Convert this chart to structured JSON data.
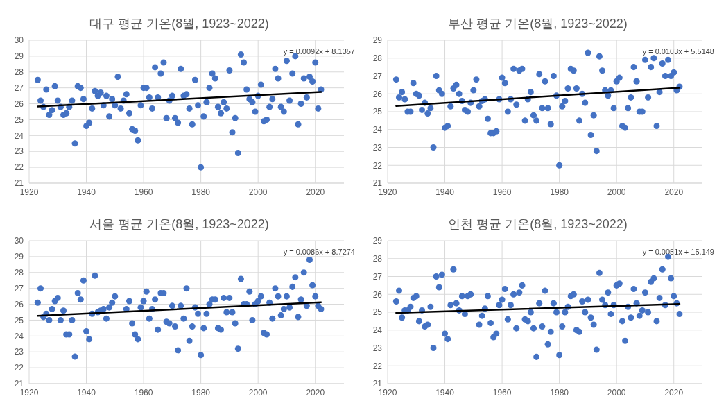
{
  "chart_data": [
    {
      "type": "scatter",
      "title": "대구 평균 기온(8월, 1923~2022)",
      "annotations": [
        "y = 0.0092x + 8.1357"
      ],
      "xlim": [
        1920,
        2030
      ],
      "xticks": [
        1920,
        1940,
        1960,
        1980,
        2000,
        2020
      ],
      "ylim": [
        21,
        30
      ],
      "yticks": [
        21,
        22,
        23,
        24,
        25,
        26,
        27,
        28,
        29,
        30
      ],
      "grid": true,
      "x": [
        1923,
        1924,
        1925,
        1926,
        1927,
        1928,
        1929,
        1930,
        1931,
        1932,
        1933,
        1934,
        1935,
        1936,
        1937,
        1938,
        1939,
        1940,
        1941,
        1942,
        1943,
        1944,
        1945,
        1946,
        1947,
        1948,
        1949,
        1950,
        1951,
        1952,
        1953,
        1954,
        1955,
        1956,
        1957,
        1958,
        1959,
        1960,
        1961,
        1962,
        1963,
        1964,
        1965,
        1966,
        1967,
        1968,
        1969,
        1970,
        1971,
        1972,
        1973,
        1974,
        1975,
        1976,
        1977,
        1978,
        1979,
        1980,
        1981,
        1982,
        1983,
        1984,
        1985,
        1986,
        1987,
        1988,
        1989,
        1990,
        1991,
        1992,
        1993,
        1994,
        1995,
        1996,
        1997,
        1998,
        1999,
        2000,
        2001,
        2002,
        2003,
        2004,
        2005,
        2006,
        2007,
        2008,
        2009,
        2010,
        2011,
        2012,
        2013,
        2014,
        2015,
        2016,
        2017,
        2018,
        2019,
        2020,
        2021,
        2022
      ],
      "series": [
        {
          "type": "scatter",
          "color": "#4472c4",
          "marker": "circle",
          "values": [
            27.5,
            26.2,
            25.8,
            26.9,
            25.3,
            25.6,
            27.1,
            26.2,
            25.8,
            25.3,
            25.4,
            25.8,
            26.2,
            23.5,
            27.1,
            27.0,
            26.3,
            24.6,
            24.8,
            25.7,
            26.8,
            26.5,
            26.7,
            25.9,
            26.5,
            25.2,
            26.3,
            25.9,
            27.7,
            25.7,
            26.2,
            26.6,
            25.4,
            24.4,
            24.3,
            23.7,
            25.9,
            27.0,
            27.0,
            26.4,
            25.7,
            28.3,
            26.4,
            27.9,
            28.6,
            25.1,
            26.2,
            26.5,
            25.1,
            24.8,
            28.2,
            26.5,
            26.6,
            25.7,
            24.7,
            27.5,
            25.9,
            22.0,
            25.2,
            26.1,
            27.0,
            27.9,
            27.6,
            25.8,
            25.4,
            26.1,
            25.7,
            28.1,
            24.2,
            25.1,
            22.9,
            29.1,
            28.6,
            26.9,
            26.3,
            26.1,
            25.5,
            26.5,
            27.2,
            24.9,
            25.0,
            25.8,
            26.3,
            28.2,
            27.6,
            25.8,
            25.5,
            28.7,
            26.2,
            27.9,
            29.0,
            24.7,
            26.0,
            27.6,
            26.4,
            27.7,
            27.4,
            28.6,
            25.7,
            26.9
          ]
        },
        {
          "type": "line",
          "color": "#000000",
          "marker": "none",
          "values": [
            25.83,
            null,
            null,
            null,
            null,
            null,
            null,
            null,
            null,
            null,
            null,
            null,
            null,
            null,
            null,
            null,
            null,
            null,
            null,
            null,
            null,
            null,
            null,
            null,
            null,
            null,
            null,
            null,
            null,
            null,
            null,
            null,
            null,
            null,
            null,
            null,
            null,
            null,
            null,
            null,
            null,
            null,
            null,
            null,
            null,
            null,
            null,
            null,
            null,
            null,
            null,
            null,
            null,
            null,
            null,
            null,
            null,
            null,
            null,
            null,
            null,
            null,
            null,
            null,
            null,
            null,
            null,
            null,
            null,
            null,
            null,
            null,
            null,
            null,
            null,
            null,
            null,
            null,
            null,
            null,
            null,
            null,
            null,
            null,
            null,
            null,
            null,
            null,
            null,
            null,
            null,
            null,
            null,
            null,
            null,
            null,
            null,
            null,
            null,
            26.74
          ]
        }
      ]
    },
    {
      "type": "scatter",
      "title": "부산 평균 기온(8월, 1923~2022)",
      "annotations": [
        "y = 0.0103x + 5.5148"
      ],
      "xlim": [
        1920,
        2030
      ],
      "xticks": [
        1920,
        1940,
        1960,
        1980,
        2000,
        2020
      ],
      "ylim": [
        21,
        29
      ],
      "yticks": [
        21,
        22,
        23,
        24,
        25,
        26,
        27,
        28,
        29
      ],
      "grid": true,
      "x": [
        1923,
        1924,
        1925,
        1926,
        1927,
        1928,
        1929,
        1930,
        1931,
        1932,
        1933,
        1934,
        1935,
        1936,
        1937,
        1938,
        1939,
        1940,
        1941,
        1942,
        1943,
        1944,
        1945,
        1946,
        1947,
        1948,
        1949,
        1950,
        1951,
        1952,
        1953,
        1954,
        1955,
        1956,
        1957,
        1958,
        1959,
        1960,
        1961,
        1962,
        1963,
        1964,
        1965,
        1966,
        1967,
        1968,
        1969,
        1970,
        1971,
        1972,
        1973,
        1974,
        1975,
        1976,
        1977,
        1978,
        1979,
        1980,
        1981,
        1982,
        1983,
        1984,
        1985,
        1986,
        1987,
        1988,
        1989,
        1990,
        1991,
        1992,
        1993,
        1994,
        1995,
        1996,
        1997,
        1998,
        1999,
        2000,
        2001,
        2002,
        2003,
        2004,
        2005,
        2006,
        2007,
        2008,
        2009,
        2010,
        2011,
        2012,
        2013,
        2014,
        2015,
        2016,
        2017,
        2018,
        2019,
        2020,
        2021,
        2022
      ],
      "series": [
        {
          "type": "scatter",
          "color": "#4472c4",
          "marker": "circle",
          "values": [
            26.8,
            25.8,
            26.1,
            25.7,
            25.0,
            25.0,
            26.6,
            26.0,
            25.9,
            25.1,
            25.5,
            24.9,
            25.2,
            23.0,
            27.0,
            26.2,
            26.0,
            24.1,
            24.2,
            25.3,
            26.3,
            26.5,
            26.0,
            25.6,
            25.1,
            25.0,
            25.5,
            26.2,
            26.8,
            25.3,
            25.6,
            25.7,
            24.6,
            23.8,
            23.8,
            23.9,
            25.7,
            26.9,
            26.6,
            25.0,
            25.7,
            27.4,
            25.4,
            27.3,
            27.4,
            24.5,
            25.7,
            26.1,
            24.8,
            24.5,
            27.1,
            25.2,
            26.7,
            25.2,
            24.3,
            27.0,
            25.9,
            22.0,
            25.3,
            25.6,
            26.3,
            27.4,
            27.3,
            26.3,
            24.5,
            26.0,
            25.5,
            28.3,
            23.7,
            24.8,
            22.8,
            28.1,
            27.3,
            26.2,
            25.9,
            26.2,
            25.2,
            26.7,
            26.9,
            24.2,
            24.1,
            25.2,
            25.8,
            27.5,
            26.7,
            25.0,
            25.0,
            27.9,
            25.8,
            27.5,
            28.0,
            24.2,
            26.1,
            27.7,
            27.0,
            27.9,
            27.0,
            27.2,
            26.2,
            26.4
          ]
        },
        {
          "type": "line",
          "color": "#000000",
          "marker": "none",
          "values": [
            25.32,
            null,
            null,
            null,
            null,
            null,
            null,
            null,
            null,
            null,
            null,
            null,
            null,
            null,
            null,
            null,
            null,
            null,
            null,
            null,
            null,
            null,
            null,
            null,
            null,
            null,
            null,
            null,
            null,
            null,
            null,
            null,
            null,
            null,
            null,
            null,
            null,
            null,
            null,
            null,
            null,
            null,
            null,
            null,
            null,
            null,
            null,
            null,
            null,
            null,
            null,
            null,
            null,
            null,
            null,
            null,
            null,
            null,
            null,
            null,
            null,
            null,
            null,
            null,
            null,
            null,
            null,
            null,
            null,
            null,
            null,
            null,
            null,
            null,
            null,
            null,
            null,
            null,
            null,
            null,
            null,
            null,
            null,
            null,
            null,
            null,
            null,
            null,
            null,
            null,
            null,
            null,
            null,
            null,
            null,
            null,
            null,
            null,
            null,
            26.34
          ]
        }
      ]
    },
    {
      "type": "scatter",
      "title": "서울 평균 기온(8월, 1923~2022)",
      "annotations": [
        "y = 0.0086x + 8.7274"
      ],
      "xlim": [
        1920,
        2030
      ],
      "xticks": [
        1920,
        1940,
        1960,
        1980,
        2000,
        2020
      ],
      "ylim": [
        21,
        30
      ],
      "yticks": [
        21,
        22,
        23,
        24,
        25,
        26,
        27,
        28,
        29,
        30
      ],
      "grid": true,
      "x": [
        1923,
        1924,
        1925,
        1926,
        1927,
        1928,
        1929,
        1930,
        1931,
        1932,
        1933,
        1934,
        1935,
        1936,
        1937,
        1938,
        1939,
        1940,
        1941,
        1942,
        1943,
        1944,
        1945,
        1946,
        1947,
        1948,
        1949,
        1950,
        1951,
        1952,
        1953,
        1954,
        1955,
        1956,
        1957,
        1958,
        1959,
        1960,
        1961,
        1962,
        1963,
        1964,
        1965,
        1966,
        1967,
        1968,
        1969,
        1970,
        1971,
        1972,
        1973,
        1974,
        1975,
        1976,
        1977,
        1978,
        1979,
        1980,
        1981,
        1982,
        1983,
        1984,
        1985,
        1986,
        1987,
        1988,
        1989,
        1990,
        1991,
        1992,
        1993,
        1994,
        1995,
        1996,
        1997,
        1998,
        1999,
        2000,
        2001,
        2002,
        2003,
        2004,
        2005,
        2006,
        2007,
        2008,
        2009,
        2010,
        2011,
        2012,
        2013,
        2014,
        2015,
        2016,
        2017,
        2018,
        2019,
        2020,
        2021,
        2022
      ],
      "series": [
        {
          "type": "scatter",
          "color": "#4472c4",
          "marker": "circle",
          "values": [
            26.1,
            27.0,
            25.2,
            25.4,
            25.0,
            25.7,
            26.2,
            26.4,
            25.0,
            25.6,
            24.1,
            24.1,
            25.0,
            22.7,
            26.7,
            26.3,
            27.5,
            24.3,
            23.8,
            25.4,
            27.8,
            25.5,
            25.6,
            25.7,
            25.1,
            25.8,
            26.1,
            26.5,
            null,
            null,
            null,
            25.7,
            26.2,
            24.8,
            24.1,
            23.8,
            25.8,
            26.2,
            26.8,
            25.1,
            25.7,
            26.3,
            24.4,
            26.7,
            26.7,
            24.9,
            24.8,
            25.9,
            24.6,
            23.1,
            25.9,
            25.1,
            27.0,
            23.7,
            24.6,
            25.8,
            25.4,
            22.8,
            24.5,
            25.4,
            26.0,
            26.3,
            26.3,
            24.5,
            24.4,
            26.4,
            25.5,
            26.4,
            25.5,
            24.8,
            23.2,
            27.6,
            26.0,
            26.0,
            26.8,
            25.0,
            26.0,
            26.2,
            26.5,
            24.2,
            24.1,
            26.1,
            25.1,
            27.0,
            26.5,
            25.3,
            25.7,
            26.5,
            25.8,
            27.1,
            27.7,
            25.2,
            26.3,
            28.0,
            25.9,
            28.8,
            27.2,
            26.5,
            25.9,
            25.7
          ]
        },
        {
          "type": "line",
          "color": "#000000",
          "marker": "none",
          "values": [
            25.27,
            null,
            null,
            null,
            null,
            null,
            null,
            null,
            null,
            null,
            null,
            null,
            null,
            null,
            null,
            null,
            null,
            null,
            null,
            null,
            null,
            null,
            null,
            null,
            null,
            null,
            null,
            null,
            null,
            null,
            null,
            null,
            null,
            null,
            null,
            null,
            null,
            null,
            null,
            null,
            null,
            null,
            null,
            null,
            null,
            null,
            null,
            null,
            null,
            null,
            null,
            null,
            null,
            null,
            null,
            null,
            null,
            null,
            null,
            null,
            null,
            null,
            null,
            null,
            null,
            null,
            null,
            null,
            null,
            null,
            null,
            null,
            null,
            null,
            null,
            null,
            null,
            null,
            null,
            null,
            null,
            null,
            null,
            null,
            null,
            null,
            null,
            null,
            null,
            null,
            null,
            null,
            null,
            null,
            null,
            null,
            null,
            null,
            null,
            26.12
          ]
        }
      ]
    },
    {
      "type": "scatter",
      "title": "인천 평균 기온(8월, 1923~2022)",
      "annotations": [
        "y = 0.0051x + 15.149"
      ],
      "xlim": [
        1920,
        2030
      ],
      "xticks": [
        1920,
        1940,
        1960,
        1980,
        2000,
        2020
      ],
      "ylim": [
        21,
        29
      ],
      "yticks": [
        21,
        22,
        23,
        24,
        25,
        26,
        27,
        28,
        29
      ],
      "grid": true,
      "x": [
        1923,
        1924,
        1925,
        1926,
        1927,
        1928,
        1929,
        1930,
        1931,
        1932,
        1933,
        1934,
        1935,
        1936,
        1937,
        1938,
        1939,
        1940,
        1941,
        1942,
        1943,
        1944,
        1945,
        1946,
        1947,
        1948,
        1949,
        1950,
        1951,
        1952,
        1953,
        1954,
        1955,
        1956,
        1957,
        1958,
        1959,
        1960,
        1961,
        1962,
        1963,
        1964,
        1965,
        1966,
        1967,
        1968,
        1969,
        1970,
        1971,
        1972,
        1973,
        1974,
        1975,
        1976,
        1977,
        1978,
        1979,
        1980,
        1981,
        1982,
        1983,
        1984,
        1985,
        1986,
        1987,
        1988,
        1989,
        1990,
        1991,
        1992,
        1993,
        1994,
        1995,
        1996,
        1997,
        1998,
        1999,
        2000,
        2001,
        2002,
        2003,
        2004,
        2005,
        2006,
        2007,
        2008,
        2009,
        2010,
        2011,
        2012,
        2013,
        2014,
        2015,
        2016,
        2017,
        2018,
        2019,
        2020,
        2021,
        2022
      ],
      "series": [
        {
          "type": "scatter",
          "color": "#4472c4",
          "marker": "circle",
          "values": [
            25.6,
            26.2,
            24.7,
            25.1,
            25.1,
            25.3,
            25.8,
            25.9,
            24.5,
            25.1,
            24.2,
            24.3,
            25.3,
            23.0,
            27.0,
            26.4,
            27.1,
            23.8,
            23.5,
            25.4,
            27.4,
            25.5,
            25.1,
            25.9,
            24.9,
            25.9,
            26.0,
            null,
            null,
            24.3,
            24.8,
            25.2,
            25.9,
            24.4,
            23.6,
            23.8,
            25.4,
            25.7,
            26.3,
            24.6,
            25.4,
            26.0,
            24.1,
            26.1,
            26.5,
            24.6,
            24.5,
            25.0,
            24.1,
            22.5,
            25.5,
            24.2,
            26.2,
            23.2,
            23.9,
            25.5,
            25.0,
            22.6,
            24.2,
            25.0,
            25.3,
            25.9,
            26.0,
            24.0,
            23.9,
            25.6,
            25.0,
            25.7,
            24.7,
            24.3,
            22.9,
            27.2,
            25.7,
            25.4,
            26.1,
            24.9,
            25.4,
            26.5,
            26.6,
            24.5,
            23.4,
            25.3,
            24.7,
            26.3,
            25.5,
            24.8,
            25.1,
            26.1,
            25.0,
            26.7,
            26.9,
            24.5,
            25.8,
            27.4,
            25.4,
            28.1,
            26.9,
            25.9,
            25.5,
            24.9
          ]
        },
        {
          "type": "line",
          "color": "#000000",
          "marker": "none",
          "values": [
            24.96,
            null,
            null,
            null,
            null,
            null,
            null,
            null,
            null,
            null,
            null,
            null,
            null,
            null,
            null,
            null,
            null,
            null,
            null,
            null,
            null,
            null,
            null,
            null,
            null,
            null,
            null,
            null,
            null,
            null,
            null,
            null,
            null,
            null,
            null,
            null,
            null,
            null,
            null,
            null,
            null,
            null,
            null,
            null,
            null,
            null,
            null,
            null,
            null,
            null,
            null,
            null,
            null,
            null,
            null,
            null,
            null,
            null,
            null,
            null,
            null,
            null,
            null,
            null,
            null,
            null,
            null,
            null,
            null,
            null,
            null,
            null,
            null,
            null,
            null,
            null,
            null,
            null,
            null,
            null,
            null,
            null,
            null,
            null,
            null,
            null,
            null,
            null,
            null,
            null,
            null,
            null,
            null,
            null,
            null,
            null,
            null,
            null,
            null,
            25.46
          ]
        }
      ]
    }
  ]
}
